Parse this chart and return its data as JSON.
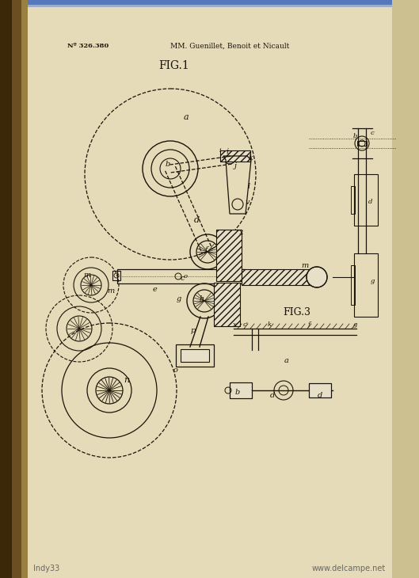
{
  "bg_paper": "#e8dfc8",
  "bg_left_dark": "#4a3510",
  "bg_left_mid": "#7a6030",
  "bg_right": "#cfc08a",
  "line_color": "#1a1408",
  "text_color": "#1a1408",
  "hatch_bg": "#c8b878",
  "header_left": "Nº 326.380",
  "header_right": "MM. Guenillet, Benoit et Nicault",
  "fig1_label": "FIG.1",
  "fig3_label": "FIG.3",
  "watermark_left": "Indy33",
  "watermark_right": "www.delcampe.net"
}
